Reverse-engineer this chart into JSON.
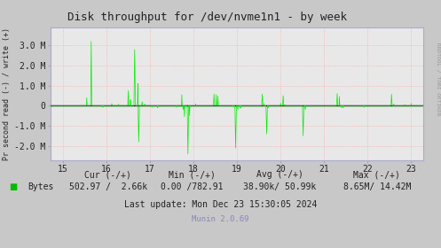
{
  "title": "Disk throughput for /dev/nvme1n1 - by week",
  "ylabel": "Pr second read (-) / write (+)",
  "xlabel_ticks": [
    15,
    16,
    17,
    18,
    19,
    20,
    21,
    22,
    23
  ],
  "xlim": [
    14.72,
    23.28
  ],
  "ylim": [
    -2700000.0,
    3900000.0
  ],
  "yticks": [
    -2000000,
    -1000000,
    0,
    1000000,
    2000000,
    3000000
  ],
  "ytick_labels": [
    "-2.0 M",
    "-1.0 M",
    "0",
    "1.0 M",
    "2.0 M",
    "3.0 M"
  ],
  "bg_color": "#c8c8c8",
  "plot_bg_color": "#e8e8e8",
  "grid_color": "#ff9999",
  "line_color": "#00ee00",
  "zero_line_color": "#000000",
  "vgrid_color": "#ff9999",
  "right_label": "RRDTOOL / TOBI OETIKER",
  "legend_label": "Bytes",
  "legend_color": "#00bb00",
  "cur_minus": "502.97",
  "cur_plus": "2.66k",
  "min_minus": "0.00",
  "min_plus": "782.91",
  "avg_minus": "38.90k",
  "avg_plus": "50.99k",
  "max_minus": "8.65M",
  "max_plus": "14.42M",
  "last_update": "Last update: Mon Dec 23 15:30:05 2024",
  "munin_version": "Munin 2.0.69",
  "seed": 42
}
